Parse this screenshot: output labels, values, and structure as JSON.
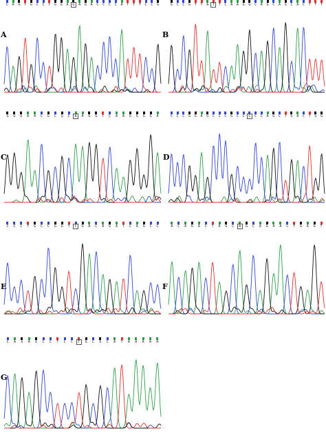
{
  "colors": {
    "A": "#2e9e4a",
    "C": "#3346d0",
    "G": "#111111",
    "T": "#e03030"
  },
  "panels": [
    {
      "label": "A",
      "seq": "CAGTGCCTGGAGAGACCCCATTTCCG",
      "marked": 11
    },
    {
      "label": "B",
      "seq": "GCCGTTATTCAAGGCAGCAGCACTTT",
      "marked": 7
    },
    {
      "label": "C",
      "seq": "GGGAACGCGCAAGGTCAAGGGGA",
      "marked": 10
    },
    {
      "label": "D",
      "seq": "CCCGGAGCCCGCCCCCAGCTGACTGG",
      "marked": 13
    },
    {
      "label": "E",
      "seq": "CCCTGCCGGTCGACAGATCAGCC",
      "marked": 10
    },
    {
      "label": "F",
      "seq": "ACAGACTAGCAGCAGAACTGAGT",
      "marked": 10
    },
    {
      "label": "G",
      "seq": "CAGAGCCTCCTGCGCATAAAAA",
      "marked": 10
    }
  ]
}
